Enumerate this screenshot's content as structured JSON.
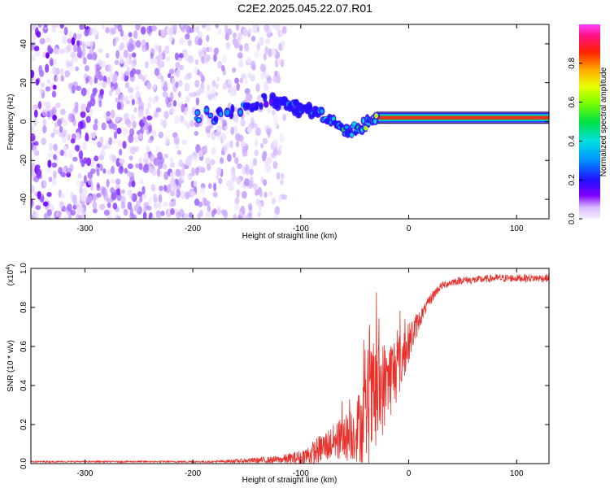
{
  "title": "C2E2.2025.045.22.07.R01",
  "chart_data": [
    {
      "type": "heatmap",
      "name": "spectrogram",
      "xlabel": "Height of straight line (km)",
      "ylabel": "Frequency (Hz)",
      "xlim": [
        -350,
        130
      ],
      "ylim": [
        -50,
        50
      ],
      "xticks": [
        -300,
        -200,
        -100,
        0,
        100
      ],
      "yticks": [
        -40,
        -20,
        0,
        20,
        40
      ],
      "colorbar": {
        "label": "Normalized spectral amplitude",
        "range": [
          0.0,
          1.0
        ],
        "ticks": [
          0.0,
          0.2,
          0.4,
          0.6,
          0.8
        ]
      },
      "noise_region_x": [
        -350,
        -115
      ],
      "ridge": [
        {
          "x": -205,
          "y": 4,
          "amp": 0.4
        },
        {
          "x": -175,
          "y": 3,
          "amp": 0.35
        },
        {
          "x": -150,
          "y": 7,
          "amp": 0.3
        },
        {
          "x": -135,
          "y": 11,
          "amp": 0.25
        },
        {
          "x": -120,
          "y": 10,
          "amp": 0.3
        },
        {
          "x": -100,
          "y": 6,
          "amp": 0.35
        },
        {
          "x": -80,
          "y": 4,
          "amp": 0.4
        },
        {
          "x": -70,
          "y": 0,
          "amp": 0.45
        },
        {
          "x": -55,
          "y": -5,
          "amp": 0.45
        },
        {
          "x": -45,
          "y": -2,
          "amp": 0.5
        },
        {
          "x": -30,
          "y": 1,
          "amp": 0.7
        },
        {
          "x": 0,
          "y": 2,
          "amp": 0.9
        },
        {
          "x": 50,
          "y": 2,
          "amp": 0.95
        },
        {
          "x": 90,
          "y": 2,
          "amp": 0.9
        },
        {
          "x": 130,
          "y": 2,
          "amp": 0.95
        }
      ]
    },
    {
      "type": "line",
      "name": "snr",
      "xlabel": "Height of straight line (km)",
      "ylabel": "SNR (10 * v/v)",
      "y_scale_label": "(x10",
      "y_scale_exp": "4",
      "y_scale_close": ")",
      "xlim": [
        -350,
        130
      ],
      "ylim": [
        0.0,
        1.0
      ],
      "xticks": [
        -300,
        -200,
        -100,
        0,
        100
      ],
      "yticks": [
        0.0,
        0.2,
        0.4,
        0.6,
        0.8,
        1.0
      ],
      "color": "#e8302a",
      "series": [
        {
          "name": "SNR",
          "x": [
            -350,
            -250,
            -180,
            -120,
            -100,
            -90,
            -80,
            -70,
            -60,
            -50,
            -45,
            -40,
            -35,
            -30,
            -25,
            -20,
            -15,
            -10,
            -5,
            0,
            5,
            10,
            15,
            20,
            25,
            30,
            40,
            50,
            60,
            80,
            100,
            120,
            130
          ],
          "y": [
            0.01,
            0.01,
            0.01,
            0.02,
            0.03,
            0.05,
            0.08,
            0.11,
            0.13,
            0.16,
            0.2,
            0.24,
            0.3,
            0.34,
            0.38,
            0.42,
            0.46,
            0.5,
            0.55,
            0.62,
            0.68,
            0.74,
            0.79,
            0.84,
            0.88,
            0.91,
            0.93,
            0.94,
            0.94,
            0.95,
            0.95,
            0.95,
            0.95
          ],
          "noise": [
            0.004,
            0.004,
            0.005,
            0.02,
            0.04,
            0.06,
            0.08,
            0.09,
            0.12,
            0.15,
            0.2,
            0.25,
            0.3,
            0.3,
            0.25,
            0.22,
            0.2,
            0.18,
            0.14,
            0.1,
            0.08,
            0.05,
            0.03,
            0.03,
            0.025,
            0.02,
            0.02,
            0.02,
            0.02,
            0.02,
            0.02,
            0.02,
            0.02
          ]
        }
      ]
    }
  ],
  "colors": {
    "axis": "#000000",
    "line": "#e8302a",
    "noise_base": "#8a2be2"
  }
}
